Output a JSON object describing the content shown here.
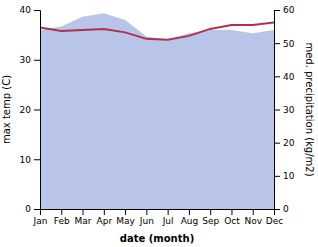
{
  "chart_data": {
    "type": "line",
    "xlabel": "date (month)",
    "ylabel": "max temp (C)",
    "y2label": "med. precipitation (kg/m2)",
    "categories": [
      "Jan",
      "Feb",
      "Mar",
      "Apr",
      "May",
      "Jun",
      "Jul",
      "Aug",
      "Sep",
      "Oct",
      "Nov",
      "Dec"
    ],
    "series": [
      {
        "type": "area",
        "axis": "y2",
        "color": "#b8c4e8",
        "values": [
          54,
          55,
          58,
          59,
          57,
          52,
          51,
          53,
          54,
          54,
          53,
          54
        ]
      },
      {
        "type": "line",
        "color": "#b03050",
        "values": [
          36.5,
          35.8,
          36.0,
          36.2,
          35.5,
          34.2,
          34.0,
          34.8,
          36.2,
          37.0,
          37.0,
          37.5
        ]
      }
    ],
    "ylim": [
      0,
      40
    ],
    "yticks": [
      0,
      10,
      20,
      30,
      40
    ],
    "y2lim": [
      0,
      60
    ],
    "y2ticks": [
      0,
      10,
      20,
      30,
      40,
      50,
      60
    ],
    "grid": false
  }
}
